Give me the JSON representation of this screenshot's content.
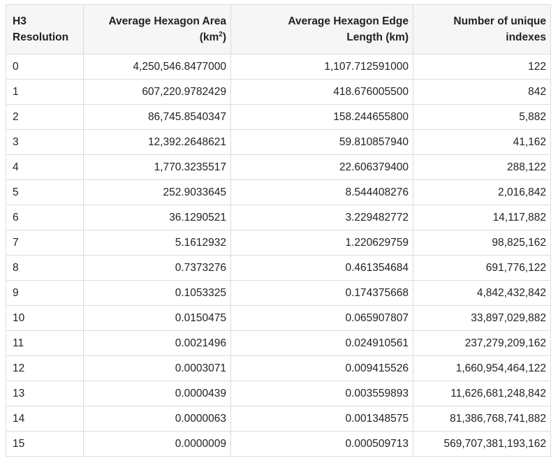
{
  "table": {
    "headers": {
      "resolution": [
        "H3",
        "Resolution"
      ],
      "area": {
        "line1": "Average Hexagon Area",
        "unit_prefix": "(km",
        "unit_sup": "2",
        "unit_suffix": ")"
      },
      "edge": [
        "Average Hexagon Edge",
        "Length (km)"
      ],
      "indexes": [
        "Number of unique",
        "indexes"
      ]
    },
    "rows": [
      {
        "res": "0",
        "area": "4,250,546.8477000",
        "edge": "1,107.712591000",
        "count": "122"
      },
      {
        "res": "1",
        "area": "607,220.9782429",
        "edge": "418.676005500",
        "count": "842"
      },
      {
        "res": "2",
        "area": "86,745.8540347",
        "edge": "158.244655800",
        "count": "5,882"
      },
      {
        "res": "3",
        "area": "12,392.2648621",
        "edge": "59.810857940",
        "count": "41,162"
      },
      {
        "res": "4",
        "area": "1,770.3235517",
        "edge": "22.606379400",
        "count": "288,122"
      },
      {
        "res": "5",
        "area": "252.9033645",
        "edge": "8.544408276",
        "count": "2,016,842"
      },
      {
        "res": "6",
        "area": "36.1290521",
        "edge": "3.229482772",
        "count": "14,117,882"
      },
      {
        "res": "7",
        "area": "5.1612932",
        "edge": "1.220629759",
        "count": "98,825,162"
      },
      {
        "res": "8",
        "area": "0.7373276",
        "edge": "0.461354684",
        "count": "691,776,122"
      },
      {
        "res": "9",
        "area": "0.1053325",
        "edge": "0.174375668",
        "count": "4,842,432,842"
      },
      {
        "res": "10",
        "area": "0.0150475",
        "edge": "0.065907807",
        "count": "33,897,029,882"
      },
      {
        "res": "11",
        "area": "0.0021496",
        "edge": "0.024910561",
        "count": "237,279,209,162"
      },
      {
        "res": "12",
        "area": "0.0003071",
        "edge": "0.009415526",
        "count": "1,660,954,464,122"
      },
      {
        "res": "13",
        "area": "0.0000439",
        "edge": "0.003559893",
        "count": "11,626,681,248,842"
      },
      {
        "res": "14",
        "area": "0.0000063",
        "edge": "0.001348575",
        "count": "81,386,768,741,882"
      },
      {
        "res": "15",
        "area": "0.0000009",
        "edge": "0.000509713",
        "count": "569,707,381,193,162"
      }
    ]
  }
}
